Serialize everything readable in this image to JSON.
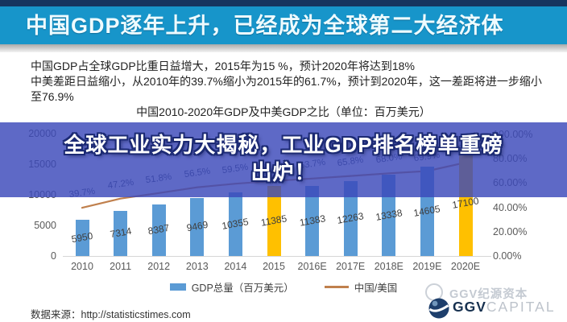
{
  "page": {
    "header": {
      "title": "中国GDP逐年上升，已经成为全球第二大经济体"
    },
    "intro": {
      "para1": "中国GDP占全球GDP比重日益增大，2015年为15 %，预计2020年将达到18%",
      "para2": "中美差距日益缩小，从2010年的39.7%缩小为2015年的61.7%，预计到2020年，这一差距将进一步缩小至76.9%"
    },
    "overlay": {
      "headline_line1": "全球工业实力大揭秘，工业GDP排名榜单重磅",
      "headline_line2": "出炉！"
    },
    "footer": {
      "source": "数据来源：http://statisticstimes.com",
      "logo_zh": "GGV纪源资本",
      "logo_en_bold": "GGV",
      "logo_en_light": "CAPITAL"
    }
  },
  "chart_data": {
    "type": "bar",
    "subtype": "combo-bar-line-dual-axis",
    "title": "中国2010-2020年GDP及中美GDP之比（单位：百万美元）",
    "categories": [
      "2010",
      "2011",
      "2012",
      "2013",
      "2014",
      "2015",
      "2016E",
      "2017E",
      "2018E",
      "2019E",
      "2020E"
    ],
    "series": [
      {
        "name": "GDP总量（百万美元）",
        "type": "bar",
        "axis": "left",
        "values": [
          5950,
          7314,
          8387,
          9469,
          10355,
          11385,
          11383,
          12263,
          13338,
          14605,
          17100
        ]
      },
      {
        "name": "中国/美国",
        "type": "line",
        "axis": "right",
        "unit": "%",
        "values": [
          39.7,
          47.2,
          51.8,
          56.5,
          59.5,
          61.7,
          63.7,
          65.8,
          68.0,
          69.9,
          76.9
        ]
      }
    ],
    "bar_highlight_categories": [
      "2015",
      "2020E"
    ],
    "left_axis": {
      "min": 0,
      "max": 20000,
      "ticks": [
        0,
        5000,
        10000,
        15000,
        20000
      ]
    },
    "right_axis": {
      "min": 0,
      "max": 100,
      "ticks": [
        "0.00%",
        "20.00%",
        "40.00%",
        "60.00%",
        "80.00%",
        "100.00%"
      ]
    },
    "gridlines": false,
    "legend_position": "bottom",
    "legend": [
      {
        "label": "GDP总量（百万美元）",
        "swatch": "bar"
      },
      {
        "label": "中国/美国",
        "swatch": "line"
      }
    ]
  },
  "colors": {
    "top_strip": "#16355f",
    "header_bg": "#1795ca",
    "bar_blue": "#5b9bd5",
    "bar_yellow": "#ffc000",
    "line": "#c0804d",
    "banner_bg": "rgba(58,72,185,0.82)",
    "axis_text": "#595959",
    "value_label": "#3f3f3f"
  }
}
